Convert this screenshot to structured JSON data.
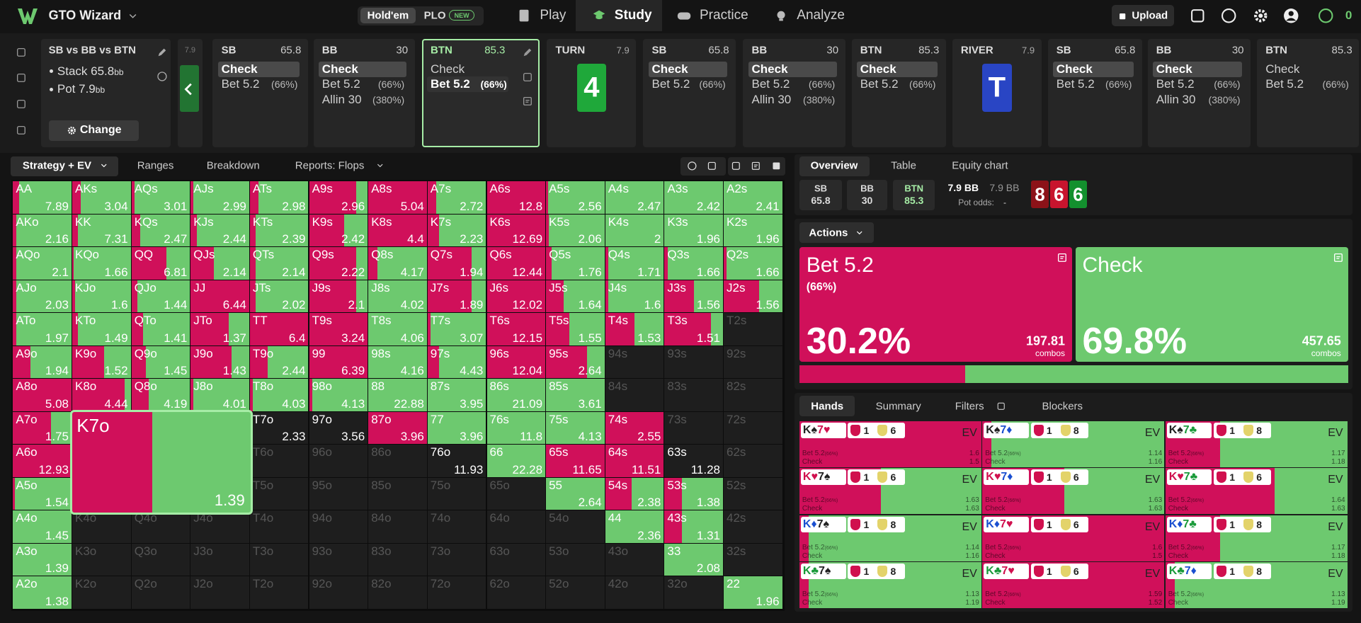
{
  "nav": {
    "brand": "GTO Wizard",
    "game_tabs": [
      "Hold'em",
      "PLO"
    ],
    "badge": "NEW",
    "menu": [
      "Play",
      "Study",
      "Practice",
      "Analyze"
    ],
    "upload": "Upload",
    "coins": "0"
  },
  "spot": {
    "title": "SB vs BB vs BTN",
    "stack": "Stack 65.8",
    "pot": "Pot 7.9",
    "unit": "bb",
    "change": "Change",
    "prev_pot": "7.9",
    "line": [
      {
        "pos": "SB",
        "stack": 65.8,
        "actions": [
          [
            "Check"
          ],
          [
            "Bet 5.2",
            "(66%)"
          ]
        ]
      },
      {
        "pos": "BB",
        "stack": 30,
        "actions": [
          [
            "Check"
          ],
          [
            "Bet 5.2",
            "(66%)"
          ],
          [
            "Allin 30",
            "(380%)"
          ]
        ]
      },
      {
        "pos": "BTN",
        "stack": 85.3,
        "actions": [
          [
            "Check"
          ],
          [
            "Bet 5.2",
            "(66%)"
          ]
        ]
      },
      {
        "street": "TURN",
        "pot": 7.9,
        "card": "4",
        "color": "#1fa83a"
      },
      {
        "pos": "SB",
        "stack": 65.8,
        "actions": [
          [
            "Check"
          ],
          [
            "Bet 5.2",
            "(66%)"
          ]
        ]
      },
      {
        "pos": "BB",
        "stack": 30,
        "actions": [
          [
            "Check"
          ],
          [
            "Bet 5.2",
            "(66%)"
          ],
          [
            "Allin 30",
            "(380%)"
          ]
        ]
      },
      {
        "pos": "BTN",
        "stack": 85.3,
        "actions": [
          [
            "Check"
          ],
          [
            "Bet 5.2",
            "(66%)"
          ]
        ]
      },
      {
        "street": "RIVER",
        "pot": 7.9,
        "card": "T",
        "color": "#2945c4"
      },
      {
        "pos": "SB",
        "stack": 65.8,
        "actions": [
          [
            "Check"
          ],
          [
            "Bet 5.2",
            "(66%)"
          ]
        ]
      },
      {
        "pos": "BB",
        "stack": 30,
        "actions": [
          [
            "Check"
          ],
          [
            "Bet 5.2",
            "(66%)"
          ],
          [
            "Allin 30",
            "(380%)"
          ]
        ]
      },
      {
        "pos": "BTN",
        "stack": 85.3,
        "actions": [
          [
            "Check"
          ],
          [
            "Bet 5.2",
            "(66%)"
          ]
        ]
      }
    ]
  },
  "strategy_tabs": [
    "Strategy + EV",
    "Ranges",
    "Breakdown",
    "Reports: Flops"
  ],
  "grid": {
    "rows": [
      [
        [
          "AA",
          7.89,
          10
        ],
        [
          "AKs",
          3.04,
          15
        ],
        [
          "AQs",
          3.01,
          5
        ],
        [
          "AJs",
          2.99,
          5
        ],
        [
          "ATs",
          2.98,
          15
        ],
        [
          "A9s",
          2.96,
          80
        ],
        [
          "A8s",
          5.04,
          100
        ],
        [
          "A7s",
          2.72,
          15
        ],
        [
          "A6s",
          12.8,
          100
        ],
        [
          "A5s",
          2.56,
          3
        ],
        [
          "A4s",
          2.47,
          0
        ],
        [
          "A3s",
          2.42,
          0
        ],
        [
          "A2s",
          2.41,
          0
        ]
      ],
      [
        [
          "AKo",
          2.16,
          5
        ],
        [
          "KK",
          7.31,
          10
        ],
        [
          "KQs",
          2.47,
          15
        ],
        [
          "KJs",
          2.44,
          10
        ],
        [
          "KTs",
          2.39,
          10
        ],
        [
          "K9s",
          2.42,
          60
        ],
        [
          "K8s",
          4.4,
          100
        ],
        [
          "K7s",
          2.23,
          20
        ],
        [
          "K6s",
          12.69,
          100
        ],
        [
          "K5s",
          2.06,
          5
        ],
        [
          "K4s",
          2,
          0
        ],
        [
          "K3s",
          1.96,
          0
        ],
        [
          "K2s",
          1.96,
          0
        ]
      ],
      [
        [
          "AQo",
          2.1,
          5
        ],
        [
          "KQo",
          1.66,
          3
        ],
        [
          "QQ",
          6.81,
          60
        ],
        [
          "QJs",
          2.14,
          40
        ],
        [
          "QTs",
          2.14,
          10
        ],
        [
          "Q9s",
          2.22,
          80
        ],
        [
          "Q8s",
          4.17,
          15
        ],
        [
          "Q7s",
          1.94,
          75
        ],
        [
          "Q6s",
          12.44,
          100
        ],
        [
          "Q5s",
          1.76,
          10
        ],
        [
          "Q4s",
          1.71,
          5
        ],
        [
          "Q3s",
          1.66,
          5
        ],
        [
          "Q2s",
          1.66,
          5
        ]
      ],
      [
        [
          "AJo",
          2.03,
          5
        ],
        [
          "KJo",
          1.6,
          5
        ],
        [
          "QJo",
          1.44,
          10
        ],
        [
          "JJ",
          6.44,
          100
        ],
        [
          "JTs",
          2.02,
          10
        ],
        [
          "J9s",
          2.1,
          80
        ],
        [
          "J8s",
          4.02,
          0
        ],
        [
          "J7s",
          1.89,
          75
        ],
        [
          "J6s",
          12.02,
          100
        ],
        [
          "J5s",
          1.64,
          30
        ],
        [
          "J4s",
          1.6,
          5
        ],
        [
          "J3s",
          1.56,
          50
        ],
        [
          "J2s",
          1.56,
          60
        ]
      ],
      [
        [
          "ATo",
          1.97,
          5
        ],
        [
          "KTo",
          1.49,
          10
        ],
        [
          "QTo",
          1.41,
          20
        ],
        [
          "JTo",
          1.37,
          65
        ],
        [
          "TT",
          6.4,
          100
        ],
        [
          "T9s",
          3.24,
          100
        ],
        [
          "T8s",
          4.06,
          0
        ],
        [
          "T7s",
          3.07,
          5
        ],
        [
          "T6s",
          12.15,
          100
        ],
        [
          "T5s",
          1.55,
          40
        ],
        [
          "T4s",
          1.53,
          50
        ],
        [
          "T3s",
          1.51,
          80
        ],
        [
          "T2s",
          null,
          null
        ]
      ],
      [
        [
          "A9o",
          1.94,
          30
        ],
        [
          "K9o",
          1.52,
          55
        ],
        [
          "Q9o",
          1.45,
          25
        ],
        [
          "J9o",
          1.43,
          70
        ],
        [
          "T9o",
          2.44,
          30
        ],
        [
          "99",
          6.39,
          100
        ],
        [
          "98s",
          4.16,
          0
        ],
        [
          "97s",
          4.43,
          20
        ],
        [
          "96s",
          12.04,
          100
        ],
        [
          "95s",
          2.64,
          70
        ],
        [
          "94s",
          null,
          null
        ],
        [
          "93s",
          null,
          null
        ],
        [
          "92s",
          null,
          null
        ]
      ],
      [
        [
          "A8o",
          5.08,
          100
        ],
        [
          "K8o",
          4.44,
          90
        ],
        [
          "Q8o",
          4.19,
          30
        ],
        [
          "J8o",
          4.01,
          5
        ],
        [
          "T8o",
          4.03,
          5
        ],
        [
          "98o",
          4.13,
          5
        ],
        [
          "88",
          22.88,
          0
        ],
        [
          "87s",
          3.95,
          0
        ],
        [
          "86s",
          21.09,
          0
        ],
        [
          "85s",
          3.61,
          0
        ],
        [
          "84s",
          null,
          null
        ],
        [
          "83s",
          null,
          null
        ],
        [
          "82s",
          null,
          null
        ]
      ],
      [
        [
          "A7o",
          1.75,
          65
        ],
        [
          "K7o",
          1.39,
          45
        ],
        [
          "Q7o",
          null,
          null
        ],
        [
          "J7o",
          null,
          null
        ],
        [
          "T7o",
          2.33,
          null
        ],
        [
          "97o",
          3.56,
          null
        ],
        [
          "87o",
          3.96,
          100
        ],
        [
          "77",
          3.96,
          0
        ],
        [
          "76s",
          11.8,
          0
        ],
        [
          "75s",
          4.13,
          0
        ],
        [
          "74s",
          2.55,
          100
        ],
        [
          "73s",
          null,
          null
        ],
        [
          "72s",
          null,
          null
        ]
      ],
      [
        [
          "A6o",
          12.93,
          100
        ],
        [
          "K6o",
          null,
          null
        ],
        [
          "Q6o",
          null,
          null
        ],
        [
          "J6o",
          null,
          null
        ],
        [
          "T6o",
          null,
          null
        ],
        [
          "96o",
          null,
          null
        ],
        [
          "86o",
          null,
          null
        ],
        [
          "76o",
          11.93,
          null
        ],
        [
          "66",
          22.28,
          0
        ],
        [
          "65s",
          11.65,
          100
        ],
        [
          "64s",
          11.51,
          100
        ],
        [
          "63s",
          11.28,
          null
        ],
        [
          "62s",
          null,
          null
        ]
      ],
      [
        [
          "A5o",
          1.54,
          3
        ],
        [
          "K5o",
          null,
          null
        ],
        [
          "Q5o",
          null,
          null
        ],
        [
          "J5o",
          null,
          null
        ],
        [
          "T5o",
          null,
          null
        ],
        [
          "95o",
          null,
          null
        ],
        [
          "85o",
          null,
          null
        ],
        [
          "75o",
          null,
          null
        ],
        [
          "65o",
          null,
          null
        ],
        [
          "55",
          2.64,
          0
        ],
        [
          "54s",
          2.38,
          45
        ],
        [
          "53s",
          1.38,
          30
        ],
        [
          "52s",
          null,
          null
        ]
      ],
      [
        [
          "A4o",
          1.45,
          0
        ],
        [
          "K4o",
          null,
          null
        ],
        [
          "Q4o",
          null,
          null
        ],
        [
          "J4o",
          null,
          null
        ],
        [
          "T4o",
          null,
          null
        ],
        [
          "94o",
          null,
          null
        ],
        [
          "84o",
          null,
          null
        ],
        [
          "74o",
          null,
          null
        ],
        [
          "64o",
          null,
          null
        ],
        [
          "54o",
          null,
          null
        ],
        [
          "44",
          2.36,
          0
        ],
        [
          "43s",
          1.31,
          30
        ],
        [
          "42s",
          null,
          null
        ]
      ],
      [
        [
          "A3o",
          1.39,
          0
        ],
        [
          "K3o",
          null,
          null
        ],
        [
          "Q3o",
          null,
          null
        ],
        [
          "J3o",
          null,
          null
        ],
        [
          "T3o",
          null,
          null
        ],
        [
          "93o",
          null,
          null
        ],
        [
          "83o",
          null,
          null
        ],
        [
          "73o",
          null,
          null
        ],
        [
          "63o",
          null,
          null
        ],
        [
          "53o",
          null,
          null
        ],
        [
          "43o",
          null,
          null
        ],
        [
          "33",
          2.08,
          0
        ],
        [
          "32s",
          null,
          null
        ]
      ],
      [
        [
          "A2o",
          1.38,
          0
        ],
        [
          "K2o",
          null,
          null
        ],
        [
          "Q2o",
          null,
          null
        ],
        [
          "J2o",
          null,
          null
        ],
        [
          "T2o",
          null,
          null
        ],
        [
          "92o",
          null,
          null
        ],
        [
          "82o",
          null,
          null
        ],
        [
          "72o",
          null,
          null
        ],
        [
          "62o",
          null,
          null
        ],
        [
          "52o",
          null,
          null
        ],
        [
          "42o",
          null,
          null
        ],
        [
          "32o",
          null,
          null
        ],
        [
          "22",
          1.96,
          0
        ]
      ]
    ]
  },
  "overview": {
    "tabs": [
      "Overview",
      "Table",
      "Equity chart"
    ],
    "stacks": [
      [
        "SB",
        65.8
      ],
      [
        "BB",
        30
      ],
      [
        "BTN",
        85.3
      ]
    ],
    "pot": "7.9 BB",
    "pot_alt": "7.9 BB",
    "pot_odds_label": "Pot odds:",
    "pot_odds": "-",
    "board": [
      {
        "rank": "8",
        "color": "#8c1218"
      },
      {
        "rank": "6",
        "color": "#c8142e"
      },
      {
        "rank": "6",
        "color": "#13902e"
      }
    ]
  },
  "actions": {
    "button": "Actions",
    "items": [
      {
        "name": "Bet 5.2",
        "size": "(66%)",
        "pct": 30.2,
        "pct_label": "30.2%",
        "combos": 197.81,
        "unit": "combos",
        "color": "#d0105a"
      },
      {
        "name": "Check",
        "pct": 69.8,
        "pct_label": "69.8%",
        "combos": 457.65,
        "unit": "combos",
        "color": "#6dc96f"
      }
    ]
  },
  "hand_tabs": [
    "Hands",
    "Summary",
    "Filters",
    "Blockers"
  ],
  "hands": {
    "ev_label": "EV",
    "bet_label": "Bet 5.2",
    "size": "(66%)",
    "check_label": "Check",
    "cells": [
      {
        "cards": [
          "K♠",
          "7♥"
        ],
        "badges": [
          1,
          6
        ],
        "bet_ev": 1.6,
        "check_ev": 1.5,
        "bet": 100
      },
      {
        "cards": [
          "K♠",
          "7♦"
        ],
        "badges": [
          1,
          8
        ],
        "bet_ev": 1.14,
        "check_ev": 1.16,
        "bet": 5
      },
      {
        "cards": [
          "K♠",
          "7♣"
        ],
        "badges": [
          1,
          8
        ],
        "bet_ev": 1.17,
        "check_ev": 1.18,
        "bet": 30
      },
      {
        "cards": [
          "K♥",
          "7♠"
        ],
        "badges": [
          1,
          6
        ],
        "bet_ev": 1.63,
        "check_ev": 1.63,
        "bet": 45
      },
      {
        "cards": [
          "K♥",
          "7♦"
        ],
        "badges": [
          1,
          6
        ],
        "bet_ev": 1.63,
        "check_ev": 1.63,
        "bet": 45
      },
      {
        "cards": [
          "K♥",
          "7♣"
        ],
        "badges": [
          1,
          6
        ],
        "bet_ev": 1.64,
        "check_ev": 1.63,
        "bet": 60
      },
      {
        "cards": [
          "K♦",
          "7♠"
        ],
        "badges": [
          1,
          8
        ],
        "bet_ev": 1.14,
        "check_ev": 1.16,
        "bet": 5
      },
      {
        "cards": [
          "K♦",
          "7♥"
        ],
        "badges": [
          1,
          6
        ],
        "bet_ev": 1.6,
        "check_ev": 1.5,
        "bet": 100
      },
      {
        "cards": [
          "K♦",
          "7♣"
        ],
        "badges": [
          1,
          8
        ],
        "bet_ev": 1.17,
        "check_ev": 1.18,
        "bet": 30
      },
      {
        "cards": [
          "K♣",
          "7♠"
        ],
        "badges": [
          1,
          8
        ],
        "bet_ev": 1.13,
        "check_ev": 1.19,
        "bet": 5
      },
      {
        "cards": [
          "K♣",
          "7♥"
        ],
        "badges": [
          1,
          6
        ],
        "bet_ev": 1.59,
        "check_ev": 1.52,
        "bet": 100
      },
      {
        "cards": [
          "K♣",
          "7♦"
        ],
        "badges": [
          1,
          8
        ],
        "bet_ev": 1.13,
        "check_ev": 1.19,
        "bet": 5
      }
    ]
  }
}
